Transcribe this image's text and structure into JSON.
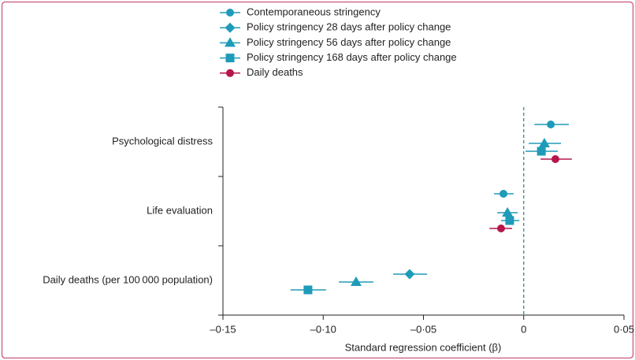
{
  "chart_data": {
    "type": "forest",
    "categories": [
      "Psychological distress",
      "Life evaluation",
      "Daily deaths (per 100 000 population)"
    ],
    "series": [
      {
        "name": "Contemporaneous stringency",
        "color": "#1e9bb8",
        "marker": "circle",
        "values": [
          0.0135,
          -0.0101,
          null
        ],
        "ci_low": [
          0.0053,
          -0.0148,
          null
        ],
        "ci_high": [
          0.0225,
          -0.005,
          null
        ]
      },
      {
        "name": "Policy stringency 28 days after policy change",
        "color": "#1e9bb8",
        "marker": "diamond",
        "values": [
          null,
          null,
          -0.0569
        ],
        "ci_low": [
          null,
          null,
          -0.0651
        ],
        "ci_high": [
          null,
          null,
          -0.0482
        ]
      },
      {
        "name": "Policy stringency 56 days after policy change",
        "color": "#1e9bb8",
        "marker": "triangle",
        "values": [
          0.0103,
          -0.0081,
          -0.0836
        ],
        "ci_low": [
          0.0025,
          -0.0132,
          -0.0922
        ],
        "ci_high": [
          0.0186,
          -0.003,
          -0.075
        ]
      },
      {
        "name": "Policy stringency 168 days after policy change",
        "color": "#1e9bb8",
        "marker": "square",
        "values": [
          0.0088,
          -0.007,
          -0.1076
        ],
        "ci_low": [
          0.0009,
          -0.0113,
          -0.1163
        ],
        "ci_high": [
          0.017,
          -0.0022,
          -0.0986
        ]
      },
      {
        "name": "Daily deaths",
        "color": "#b5174b",
        "marker": "circle",
        "values": [
          0.0158,
          -0.0113,
          null
        ],
        "ci_low": [
          0.0084,
          -0.0171,
          null
        ],
        "ci_high": [
          0.024,
          -0.0058,
          null
        ]
      }
    ],
    "xlabel": "Standard regression coefficient (β)",
    "xlim": [
      -0.15,
      0.05
    ],
    "xticks": [
      {
        "value": -0.15,
        "label": "–0·15"
      },
      {
        "value": -0.1,
        "label": "–0·10"
      },
      {
        "value": -0.05,
        "label": "–0·05"
      },
      0,
      {
        "value": 0.05,
        "label": "0·05"
      }
    ],
    "reference_line": 0,
    "legend": "top"
  }
}
